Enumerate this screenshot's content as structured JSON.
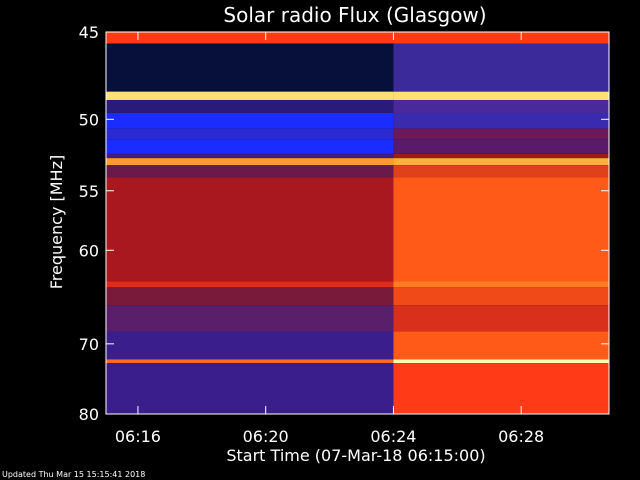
{
  "footer": {
    "updated": "Updated Thu Mar 15 15:15:41 2018"
  },
  "chart_data": {
    "type": "heatmap",
    "title": "Solar radio Flux (Glasgow)",
    "xlabel": "Start Time (07-Mar-18 06:15:00)",
    "ylabel": "Frequency [MHz]",
    "xlim": [
      "06:15:00",
      "06:30:45"
    ],
    "ylim": [
      45,
      80
    ],
    "y_scale": "reciprocal",
    "x_ticks": [
      "06:16",
      "06:20",
      "06:24",
      "06:28"
    ],
    "y_ticks": [
      45,
      50,
      55,
      60,
      70,
      80
    ],
    "grid": false,
    "colors": {
      "background": "#000000",
      "low": "#3a1f8c",
      "mid": "#b0161e",
      "high": "#ff6a1a",
      "peak": "#ffffb0",
      "blue_band": "#1a2cff",
      "dark_band": "#07103a"
    },
    "event": {
      "time": "06:24",
      "description_visible": false
    },
    "bands": [
      {
        "f_lo": 45.0,
        "f_hi": 45.6,
        "before": "#ff3a14",
        "after": "#ff3a14"
      },
      {
        "f_lo": 45.6,
        "f_hi": 48.3,
        "before": "#07103a",
        "after": "#3a2a9a"
      },
      {
        "f_lo": 48.3,
        "f_hi": 48.8,
        "before": "#ffe070",
        "after": "#ffe070"
      },
      {
        "f_lo": 48.8,
        "f_hi": 49.6,
        "before": "#2a1a7a",
        "after": "#4a2a9a"
      },
      {
        "f_lo": 49.6,
        "f_hi": 50.6,
        "before": "#1a2cff",
        "after": "#3a2ab0"
      },
      {
        "f_lo": 50.6,
        "f_hi": 51.3,
        "before": "#2a2ad0",
        "after": "#6a1a5a"
      },
      {
        "f_lo": 51.3,
        "f_hi": 52.3,
        "before": "#1a2cff",
        "after": "#5a1a6a"
      },
      {
        "f_lo": 52.3,
        "f_hi": 52.6,
        "before": "#3a1f8c",
        "after": "#a01818"
      },
      {
        "f_lo": 52.6,
        "f_hi": 53.1,
        "before": "#ff9a30",
        "after": "#ffb040"
      },
      {
        "f_lo": 53.1,
        "f_hi": 54.0,
        "before": "#6a1a4a",
        "after": "#e0401a"
      },
      {
        "f_lo": 54.0,
        "f_hi": 63.0,
        "before": "#a8181e",
        "after": "#ff5a18"
      },
      {
        "f_lo": 63.0,
        "f_hi": 63.6,
        "before": "#e02a1a",
        "after": "#ff7a20"
      },
      {
        "f_lo": 63.6,
        "f_hi": 65.5,
        "before": "#7a1a3a",
        "after": "#f04a18"
      },
      {
        "f_lo": 65.5,
        "f_hi": 68.5,
        "before": "#5a1f6a",
        "after": "#d8301a"
      },
      {
        "f_lo": 68.5,
        "f_hi": 72.0,
        "before": "#3a1f8c",
        "after": "#ff5a18"
      },
      {
        "f_lo": 72.0,
        "f_hi": 72.5,
        "before": "#ff6a20",
        "after": "#ffffb0"
      },
      {
        "f_lo": 72.5,
        "f_hi": 80.0,
        "before": "#3a1f8c",
        "after": "#ff3a16"
      }
    ]
  }
}
